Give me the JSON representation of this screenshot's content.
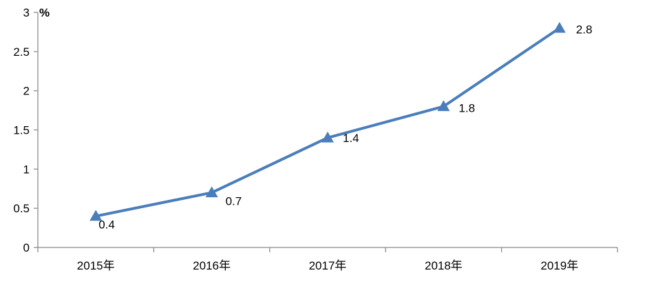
{
  "chart_data": {
    "type": "line",
    "categories": [
      "2015年",
      "2016年",
      "2017年",
      "2018年",
      "2019年"
    ],
    "values": [
      0.4,
      0.7,
      1.4,
      1.8,
      2.8
    ],
    "data_labels": [
      "0.4",
      "0.7",
      "1.4",
      "1.8",
      "2.8"
    ],
    "y_ticks": [
      "0",
      "0.5",
      "1",
      "1.5",
      "2",
      "2.5",
      "3"
    ],
    "y_unit": "%",
    "ylim": [
      0,
      3
    ],
    "marker": "triangle",
    "grid": false,
    "legend": "none",
    "colors": {
      "line": "#4a7ebb",
      "marker": "#4a7ebb",
      "axis": "#8c8c8c"
    }
  }
}
